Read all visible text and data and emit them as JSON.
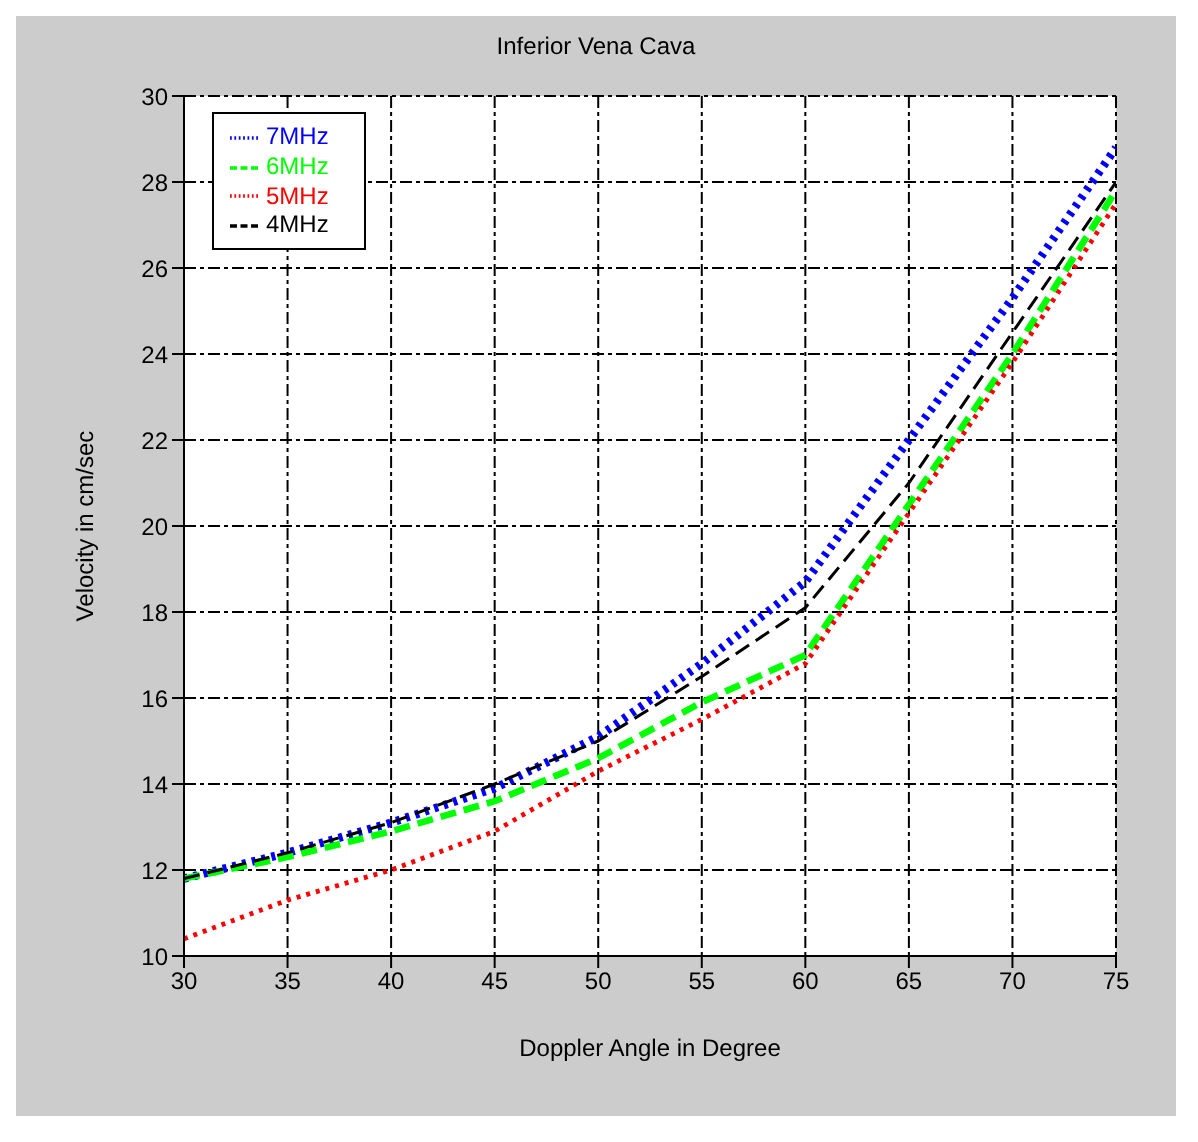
{
  "chart_data": {
    "type": "line",
    "title": "Inferior Vena Cava",
    "xlabel": "Doppler Angle in Degree",
    "ylabel": "Velocity in cm/sec",
    "x": [
      30,
      35,
      40,
      45,
      50,
      55,
      60,
      65,
      70,
      75
    ],
    "series": [
      {
        "name": "7MHz",
        "color": "#0000ff",
        "line_style": "dotted",
        "values": [
          11.8,
          12.4,
          13.1,
          13.9,
          15.1,
          16.8,
          18.7,
          22.0,
          25.3,
          28.8
        ]
      },
      {
        "name": "6MHz",
        "color": "#00ff00",
        "line_style": "dashed",
        "values": [
          11.8,
          12.3,
          12.9,
          13.6,
          14.6,
          15.9,
          17.0,
          20.5,
          24.0,
          27.8
        ]
      },
      {
        "name": "5MHz",
        "color": "#ff0000",
        "line_style": "dotted",
        "values": [
          10.4,
          11.3,
          12.0,
          12.9,
          14.3,
          15.5,
          16.8,
          20.3,
          23.8,
          27.5
        ]
      },
      {
        "name": "4MHz",
        "color": "#000000",
        "line_style": "dashed",
        "values": [
          11.8,
          12.4,
          13.1,
          14.0,
          15.0,
          16.5,
          18.1,
          21.0,
          24.5,
          28.0
        ]
      }
    ],
    "xlim": [
      30,
      75
    ],
    "xticks": [
      30,
      35,
      40,
      45,
      50,
      55,
      60,
      65,
      70,
      75
    ],
    "ylim": [
      10,
      30
    ],
    "yticks": [
      10,
      12,
      14,
      16,
      18,
      20,
      22,
      24,
      26,
      28,
      30
    ],
    "grid": true,
    "legend": "top left",
    "marker": "none"
  }
}
